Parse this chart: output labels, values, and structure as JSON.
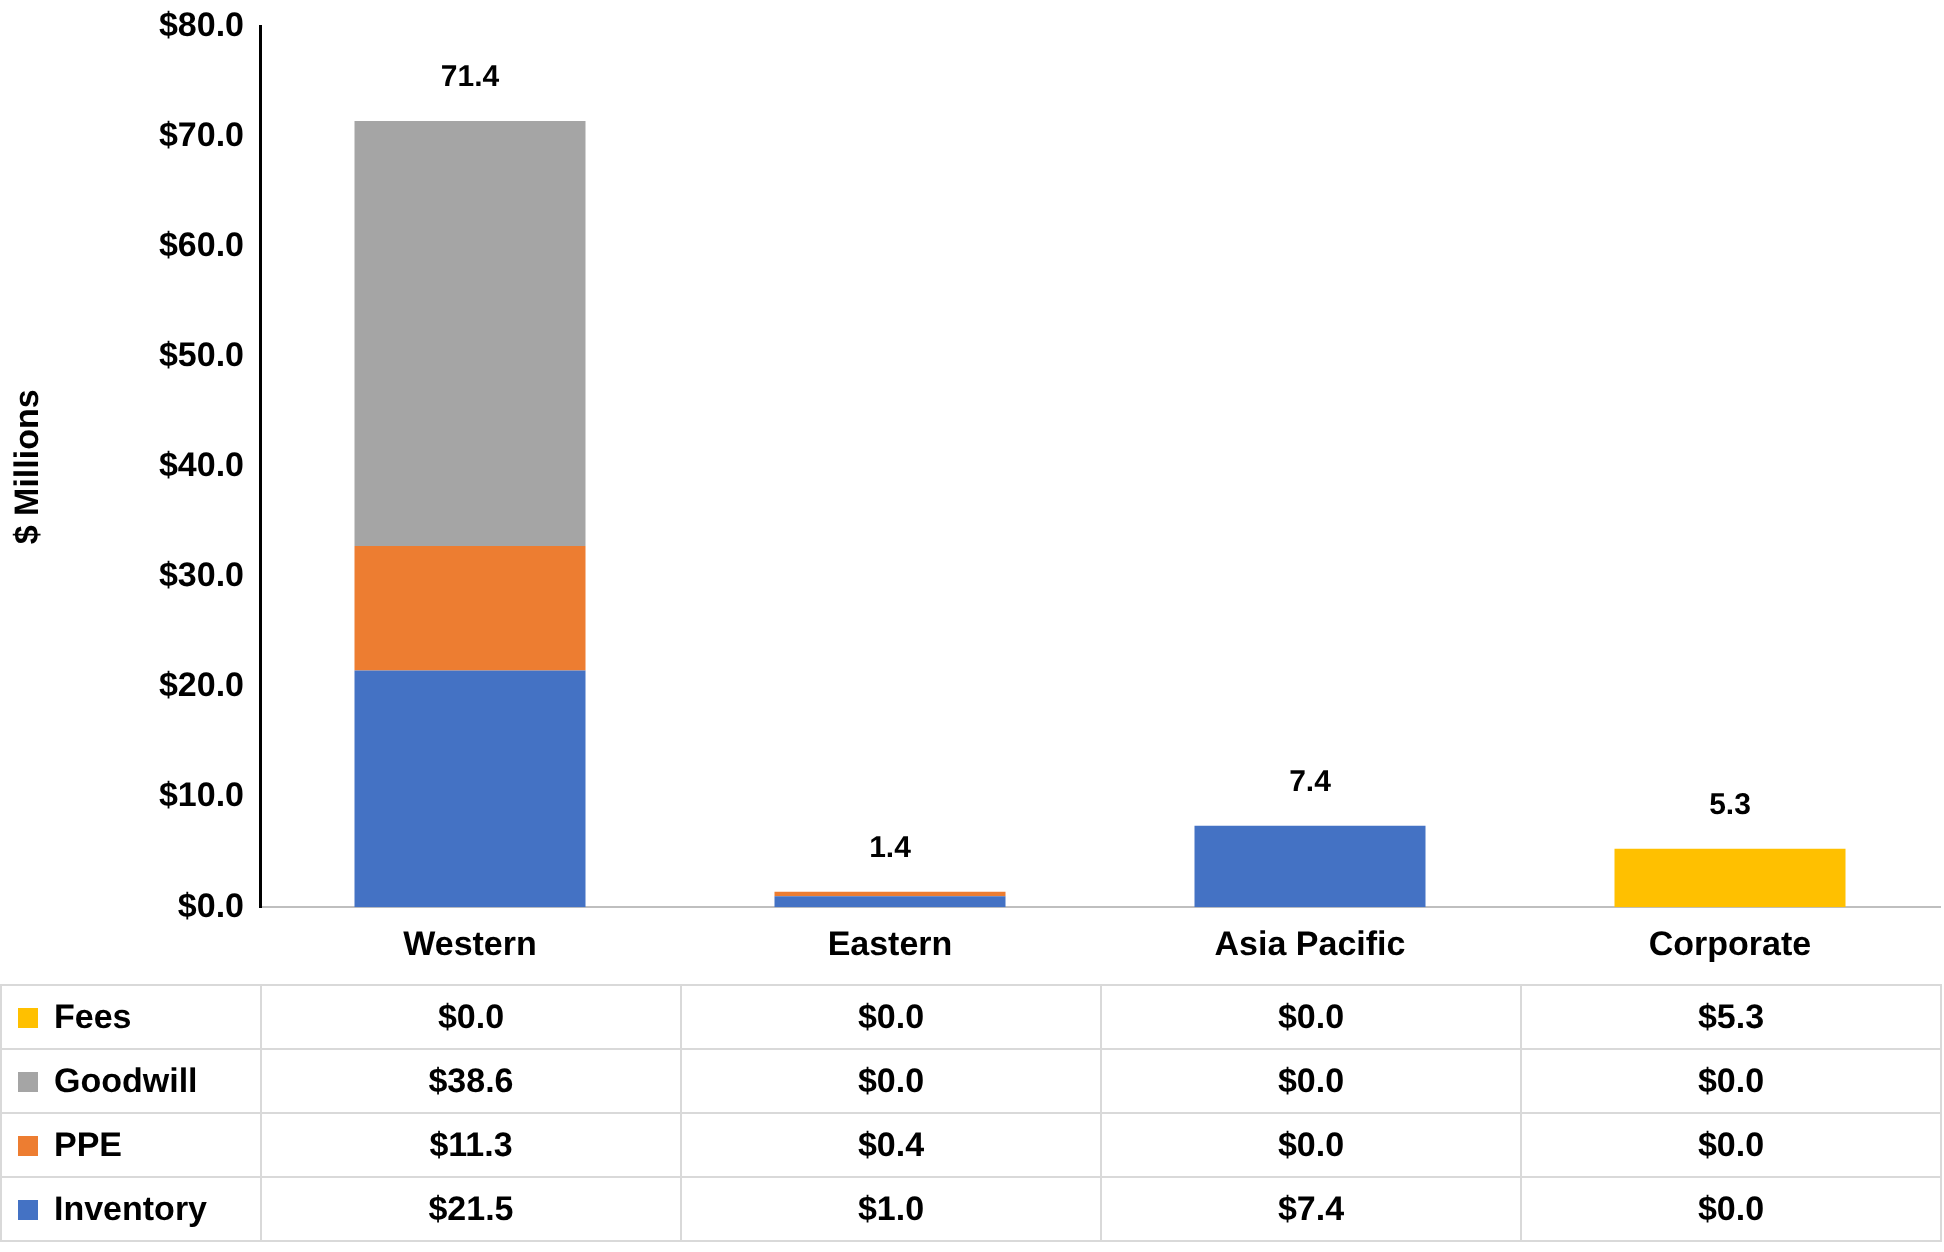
{
  "chart_data": {
    "type": "bar",
    "stacked": true,
    "ylabel": "$ Millions",
    "categories": [
      "Western",
      "Eastern",
      "Asia Pacific",
      "Corporate"
    ],
    "series": [
      {
        "name": "Inventory",
        "color": "#4472c4",
        "values": [
          21.5,
          1.0,
          7.4,
          0.0
        ],
        "value_labels": [
          "$21.5",
          "$1.0",
          "$7.4",
          "$0.0"
        ]
      },
      {
        "name": "PPE",
        "color": "#ed7d31",
        "values": [
          11.3,
          0.4,
          0.0,
          0.0
        ],
        "value_labels": [
          "$11.3",
          "$0.4",
          "$0.0",
          "$0.0"
        ]
      },
      {
        "name": "Goodwill",
        "color": "#a5a5a5",
        "values": [
          38.6,
          0.0,
          0.0,
          0.0
        ],
        "value_labels": [
          "$38.6",
          "$0.0",
          "$0.0",
          "$0.0"
        ]
      },
      {
        "name": "Fees",
        "color": "#ffc000",
        "values": [
          0.0,
          0.0,
          0.0,
          5.3
        ],
        "value_labels": [
          "$0.0",
          "$0.0",
          "$0.0",
          "$5.3"
        ]
      }
    ],
    "totals": [
      "71.4",
      "1.4",
      "7.4",
      "5.3"
    ],
    "ylim": [
      0,
      80
    ],
    "yticks": [
      {
        "value": 0,
        "label": "$0.0"
      },
      {
        "value": 10,
        "label": "$10.0"
      },
      {
        "value": 20,
        "label": "$20.0"
      },
      {
        "value": 30,
        "label": "$30.0"
      },
      {
        "value": 40,
        "label": "$40.0"
      },
      {
        "value": 50,
        "label": "$50.0"
      },
      {
        "value": 60,
        "label": "$60.0"
      },
      {
        "value": 70,
        "label": "$70.0"
      },
      {
        "value": 80,
        "label": "$80.0"
      }
    ],
    "grid": false,
    "legend": "bottom"
  }
}
